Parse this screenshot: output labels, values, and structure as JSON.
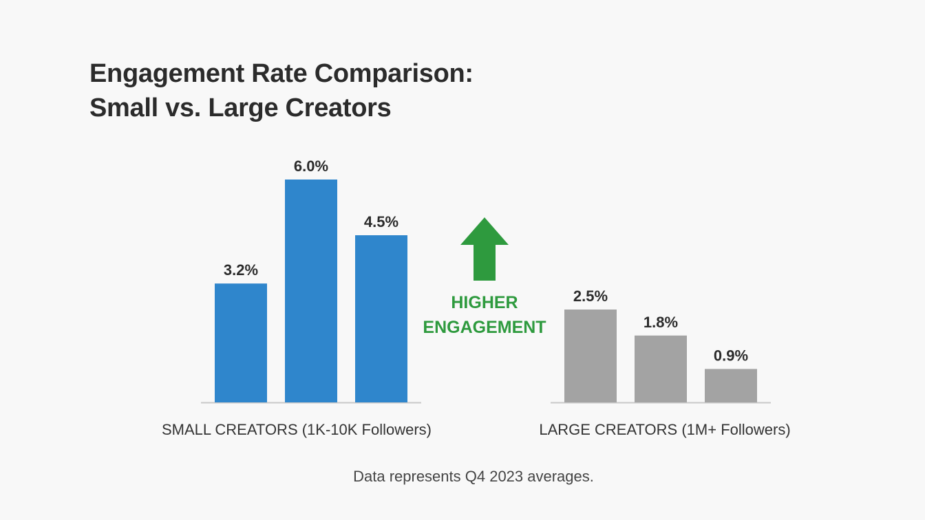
{
  "title_lines": [
    "Engagement Rate Comparison:",
    "Small vs. Large Creators"
  ],
  "footnote": "Data represents Q4 2023 averages.",
  "annotation": {
    "lines": [
      "HIGHER",
      "ENGAGEMENT"
    ],
    "icon": "up-arrow-icon",
    "color": "#2e9a3e"
  },
  "colors": {
    "small": "#2f86cc",
    "large": "#a3a3a3",
    "baseline": "#c8c8c8",
    "text": "#2b2b2b"
  },
  "chart_data": [
    {
      "type": "bar",
      "group_label": "SMALL CREATORS (1K-10K Followers)",
      "values": [
        3.2,
        6.0,
        4.5
      ],
      "labels": [
        "3.2%",
        "6.0%",
        "4.5%"
      ],
      "color": "#2f86cc"
    },
    {
      "type": "bar",
      "group_label": "LARGE CREATORS (1M+ Followers)",
      "values": [
        2.5,
        1.8,
        0.9
      ],
      "labels": [
        "2.5%",
        "1.8%",
        "0.9%"
      ],
      "color": "#a3a3a3"
    }
  ]
}
